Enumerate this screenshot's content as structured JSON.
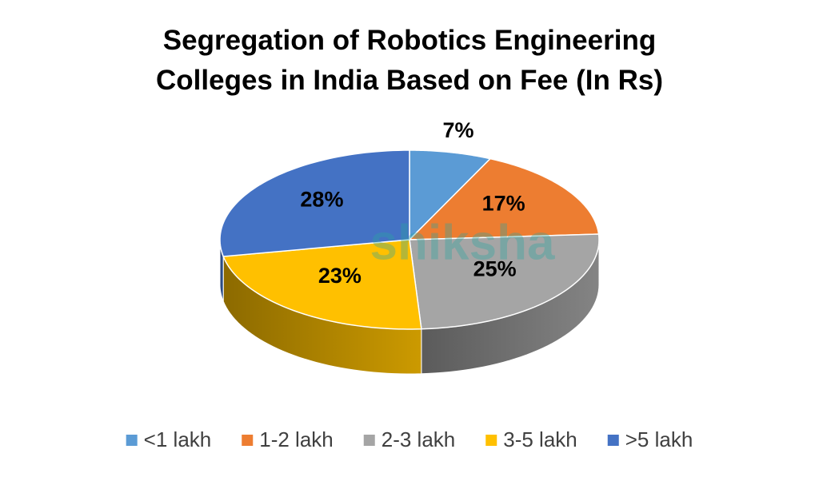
{
  "chart_data": {
    "type": "pie3d",
    "title": "Segregation of Robotics Engineering Colleges in India Based on Fee (In Rs)",
    "watermark": "shiksha",
    "categories": [
      "<1 lakh",
      "1-2 lakh",
      "2-3 lakh",
      "3-5 lakh",
      ">5 lakh"
    ],
    "values": [
      7,
      17,
      25,
      23,
      28
    ],
    "value_labels": [
      "7%",
      "17%",
      "25%",
      "23%",
      "28%"
    ],
    "colors": [
      "#5b9bd5",
      "#ed7d31",
      "#a5a5a5",
      "#ffc000",
      "#4472c4"
    ],
    "legend": "bottom"
  }
}
